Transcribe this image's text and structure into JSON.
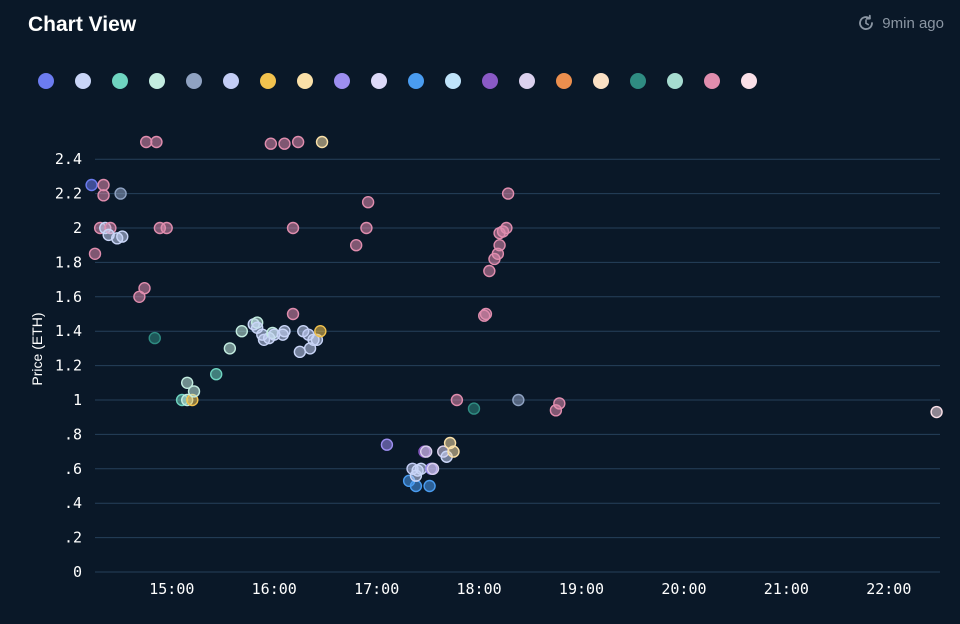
{
  "header": {
    "title": "Chart View",
    "refresh_label": "9min ago"
  },
  "legend": {
    "colors": [
      "#6c7cf0",
      "#c9d5f7",
      "#6fd4c0",
      "#c3ece0",
      "#8fa2c2",
      "#c3cdf5",
      "#f2c24e",
      "#fae0a8",
      "#9d8ef0",
      "#ddd9f8",
      "#4a9cf0",
      "#bfe3fa",
      "#8a5ac6",
      "#dbd1ee",
      "#ec8f4e",
      "#fbe1c5",
      "#2f8c82",
      "#a6dcd0",
      "#e08dae",
      "#fae0e8"
    ]
  },
  "chart_data": {
    "type": "scatter",
    "ylabel": "Price (ETH)",
    "xlabel": "",
    "xlim": [
      "14:15",
      "22:30"
    ],
    "ylim": [
      0,
      2.5
    ],
    "xticks": [
      "15:00",
      "16:00",
      "17:00",
      "18:00",
      "19:00",
      "20:00",
      "21:00",
      "22:00"
    ],
    "yticks": [
      {
        "v": 0,
        "label": "0"
      },
      {
        "v": 0.2,
        "label": ".2"
      },
      {
        "v": 0.4,
        "label": ".4"
      },
      {
        "v": 0.6,
        "label": ".6"
      },
      {
        "v": 0.8,
        "label": ".8"
      },
      {
        "v": 1.0,
        "label": "1"
      },
      {
        "v": 1.2,
        "label": "1.2"
      },
      {
        "v": 1.4,
        "label": "1.4"
      },
      {
        "v": 1.6,
        "label": "1.6"
      },
      {
        "v": 1.8,
        "label": "1.8"
      },
      {
        "v": 2.0,
        "label": "2"
      },
      {
        "v": 2.2,
        "label": "2.2"
      },
      {
        "v": 2.4,
        "label": "2.4"
      }
    ],
    "grid": true,
    "points": [
      {
        "t": "14:13",
        "y": 2.25,
        "c": 0
      },
      {
        "t": "14:20",
        "y": 2.25,
        "c": 18
      },
      {
        "t": "14:20",
        "y": 2.19,
        "c": 18
      },
      {
        "t": "14:30",
        "y": 2.2,
        "c": 4
      },
      {
        "t": "14:15",
        "y": 1.85,
        "c": 18
      },
      {
        "t": "14:18",
        "y": 2.0,
        "c": 18
      },
      {
        "t": "14:21",
        "y": 2.0,
        "c": 1
      },
      {
        "t": "14:24",
        "y": 2.0,
        "c": 18
      },
      {
        "t": "14:23",
        "y": 1.96,
        "c": 1
      },
      {
        "t": "14:28",
        "y": 1.94,
        "c": 1
      },
      {
        "t": "14:31",
        "y": 1.95,
        "c": 1
      },
      {
        "t": "14:45",
        "y": 2.5,
        "c": 18
      },
      {
        "t": "14:51",
        "y": 2.5,
        "c": 18
      },
      {
        "t": "14:53",
        "y": 2.0,
        "c": 18
      },
      {
        "t": "14:57",
        "y": 2.0,
        "c": 18
      },
      {
        "t": "14:41",
        "y": 1.6,
        "c": 18
      },
      {
        "t": "14:44",
        "y": 1.65,
        "c": 18
      },
      {
        "t": "14:50",
        "y": 1.36,
        "c": 16
      },
      {
        "t": "15:06",
        "y": 1.0,
        "c": 2
      },
      {
        "t": "15:09",
        "y": 1.1,
        "c": 3
      },
      {
        "t": "15:09",
        "y": 1.0,
        "c": 3
      },
      {
        "t": "15:12",
        "y": 1.0,
        "c": 6
      },
      {
        "t": "15:13",
        "y": 1.05,
        "c": 3
      },
      {
        "t": "15:26",
        "y": 1.15,
        "c": 2
      },
      {
        "t": "15:34",
        "y": 1.3,
        "c": 3
      },
      {
        "t": "15:41",
        "y": 1.4,
        "c": 3
      },
      {
        "t": "15:48",
        "y": 1.44,
        "c": 1
      },
      {
        "t": "15:50",
        "y": 1.45,
        "c": 3
      },
      {
        "t": "15:50",
        "y": 1.42,
        "c": 1
      },
      {
        "t": "15:53",
        "y": 1.38,
        "c": 1
      },
      {
        "t": "15:54",
        "y": 1.35,
        "c": 1
      },
      {
        "t": "15:57",
        "y": 1.36,
        "c": 1
      },
      {
        "t": "15:59",
        "y": 1.39,
        "c": 3
      },
      {
        "t": "16:00",
        "y": 1.38,
        "c": 1
      },
      {
        "t": "16:05",
        "y": 1.38,
        "c": 1
      },
      {
        "t": "16:06",
        "y": 1.4,
        "c": 1
      },
      {
        "t": "15:58",
        "y": 2.49,
        "c": 18
      },
      {
        "t": "16:06",
        "y": 2.49,
        "c": 18
      },
      {
        "t": "16:14",
        "y": 2.5,
        "c": 18
      },
      {
        "t": "16:28",
        "y": 2.5,
        "c": 7
      },
      {
        "t": "16:11",
        "y": 2.0,
        "c": 18
      },
      {
        "t": "16:11",
        "y": 1.5,
        "c": 18
      },
      {
        "t": "16:15",
        "y": 1.28,
        "c": 1
      },
      {
        "t": "16:17",
        "y": 1.4,
        "c": 1
      },
      {
        "t": "16:20",
        "y": 1.38,
        "c": 5
      },
      {
        "t": "16:21",
        "y": 1.3,
        "c": 1
      },
      {
        "t": "16:23",
        "y": 1.35,
        "c": 1
      },
      {
        "t": "16:25",
        "y": 1.35,
        "c": 1
      },
      {
        "t": "16:27",
        "y": 1.4,
        "c": 6
      },
      {
        "t": "16:48",
        "y": 1.9,
        "c": 18
      },
      {
        "t": "16:54",
        "y": 2.0,
        "c": 18
      },
      {
        "t": "16:55",
        "y": 2.15,
        "c": 18
      },
      {
        "t": "17:06",
        "y": 0.74,
        "c": 8
      },
      {
        "t": "17:19",
        "y": 0.53,
        "c": 10
      },
      {
        "t": "17:21",
        "y": 0.6,
        "c": 5
      },
      {
        "t": "17:23",
        "y": 0.5,
        "c": 10
      },
      {
        "t": "17:23",
        "y": 0.56,
        "c": 1
      },
      {
        "t": "17:24",
        "y": 0.59,
        "c": 1
      },
      {
        "t": "17:26",
        "y": 0.6,
        "c": 1
      },
      {
        "t": "17:28",
        "y": 0.7,
        "c": 12
      },
      {
        "t": "17:29",
        "y": 0.7,
        "c": 13
      },
      {
        "t": "17:31",
        "y": 0.5,
        "c": 10
      },
      {
        "t": "17:32",
        "y": 0.6,
        "c": 8
      },
      {
        "t": "17:33",
        "y": 0.6,
        "c": 13
      },
      {
        "t": "17:39",
        "y": 0.7,
        "c": 13
      },
      {
        "t": "17:41",
        "y": 0.67,
        "c": 1
      },
      {
        "t": "17:43",
        "y": 0.75,
        "c": 7
      },
      {
        "t": "17:45",
        "y": 0.7,
        "c": 7
      },
      {
        "t": "17:47",
        "y": 1.0,
        "c": 18
      },
      {
        "t": "17:57",
        "y": 0.95,
        "c": 16
      },
      {
        "t": "18:03",
        "y": 1.49,
        "c": 18
      },
      {
        "t": "18:04",
        "y": 1.5,
        "c": 18
      },
      {
        "t": "18:06",
        "y": 1.75,
        "c": 18
      },
      {
        "t": "18:09",
        "y": 1.82,
        "c": 18
      },
      {
        "t": "18:11",
        "y": 1.85,
        "c": 18
      },
      {
        "t": "18:12",
        "y": 1.9,
        "c": 18
      },
      {
        "t": "18:12",
        "y": 1.97,
        "c": 18
      },
      {
        "t": "18:14",
        "y": 1.98,
        "c": 18
      },
      {
        "t": "18:16",
        "y": 2.0,
        "c": 18
      },
      {
        "t": "18:17",
        "y": 2.2,
        "c": 18
      },
      {
        "t": "18:23",
        "y": 1.0,
        "c": 4
      },
      {
        "t": "18:45",
        "y": 0.94,
        "c": 18
      },
      {
        "t": "18:47",
        "y": 0.98,
        "c": 18
      },
      {
        "t": "22:28",
        "y": 0.93,
        "c": 19
      }
    ]
  }
}
